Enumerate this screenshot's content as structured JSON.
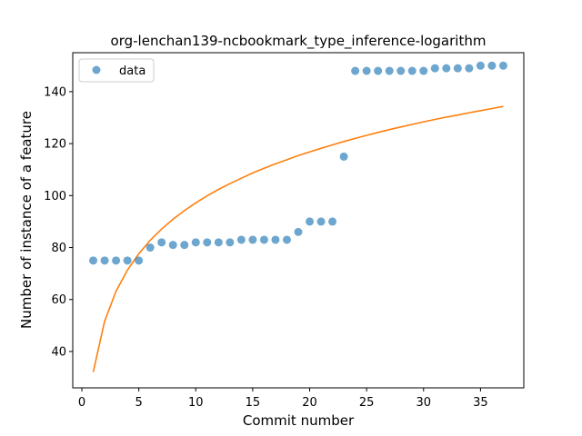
{
  "chart_data": {
    "type": "scatter",
    "title": "org-lenchan139-ncbookmark_type_inference-logarithm",
    "xlabel": "Commit number",
    "ylabel": "Number of instance of a feature",
    "xlim": [
      -0.8,
      38.8
    ],
    "ylim": [
      26,
      155
    ],
    "xticks": [
      0,
      5,
      10,
      15,
      20,
      25,
      30,
      35
    ],
    "yticks": [
      40,
      60,
      80,
      100,
      120,
      140
    ],
    "grid": false,
    "legend": {
      "placement": "top-left",
      "entries": [
        "data"
      ]
    },
    "series": [
      {
        "name": "data",
        "kind": "points",
        "color": "#1f77b4",
        "x": [
          1,
          2,
          3,
          4,
          5,
          6,
          7,
          8,
          9,
          10,
          11,
          12,
          13,
          14,
          15,
          16,
          17,
          18,
          19,
          20,
          21,
          22,
          23,
          24,
          25,
          26,
          27,
          28,
          29,
          30,
          31,
          32,
          33,
          34,
          35,
          36,
          37
        ],
        "y": [
          75,
          75,
          75,
          75,
          75,
          80,
          82,
          81,
          81,
          82,
          82,
          82,
          82,
          83,
          83,
          83,
          83,
          83,
          86,
          90,
          90,
          90,
          115,
          148,
          148,
          148,
          148,
          148,
          148,
          148,
          149,
          149,
          149,
          149,
          150,
          150,
          150
        ]
      },
      {
        "kind": "fit-line",
        "color": "#ff7f0e",
        "x": [
          1,
          2,
          3,
          4,
          5,
          6,
          7,
          8,
          9,
          10,
          11,
          12,
          13,
          14,
          15,
          16,
          17,
          18,
          19,
          20,
          21,
          22,
          23,
          24,
          25,
          26,
          27,
          28,
          29,
          30,
          31,
          32,
          33,
          34,
          35,
          36,
          37
        ],
        "y": [
          32.1,
          51.7,
          63.2,
          71.3,
          77.6,
          82.8,
          87.1,
          90.9,
          94.2,
          97.2,
          99.9,
          102.4,
          104.6,
          106.7,
          108.7,
          110.5,
          112.2,
          113.8,
          115.4,
          116.8,
          118.2,
          119.5,
          120.8,
          122.0,
          123.2,
          124.3,
          125.4,
          126.4,
          127.4,
          128.4,
          129.3,
          130.2,
          131.0,
          131.9,
          132.7,
          133.5,
          134.3
        ]
      }
    ]
  }
}
